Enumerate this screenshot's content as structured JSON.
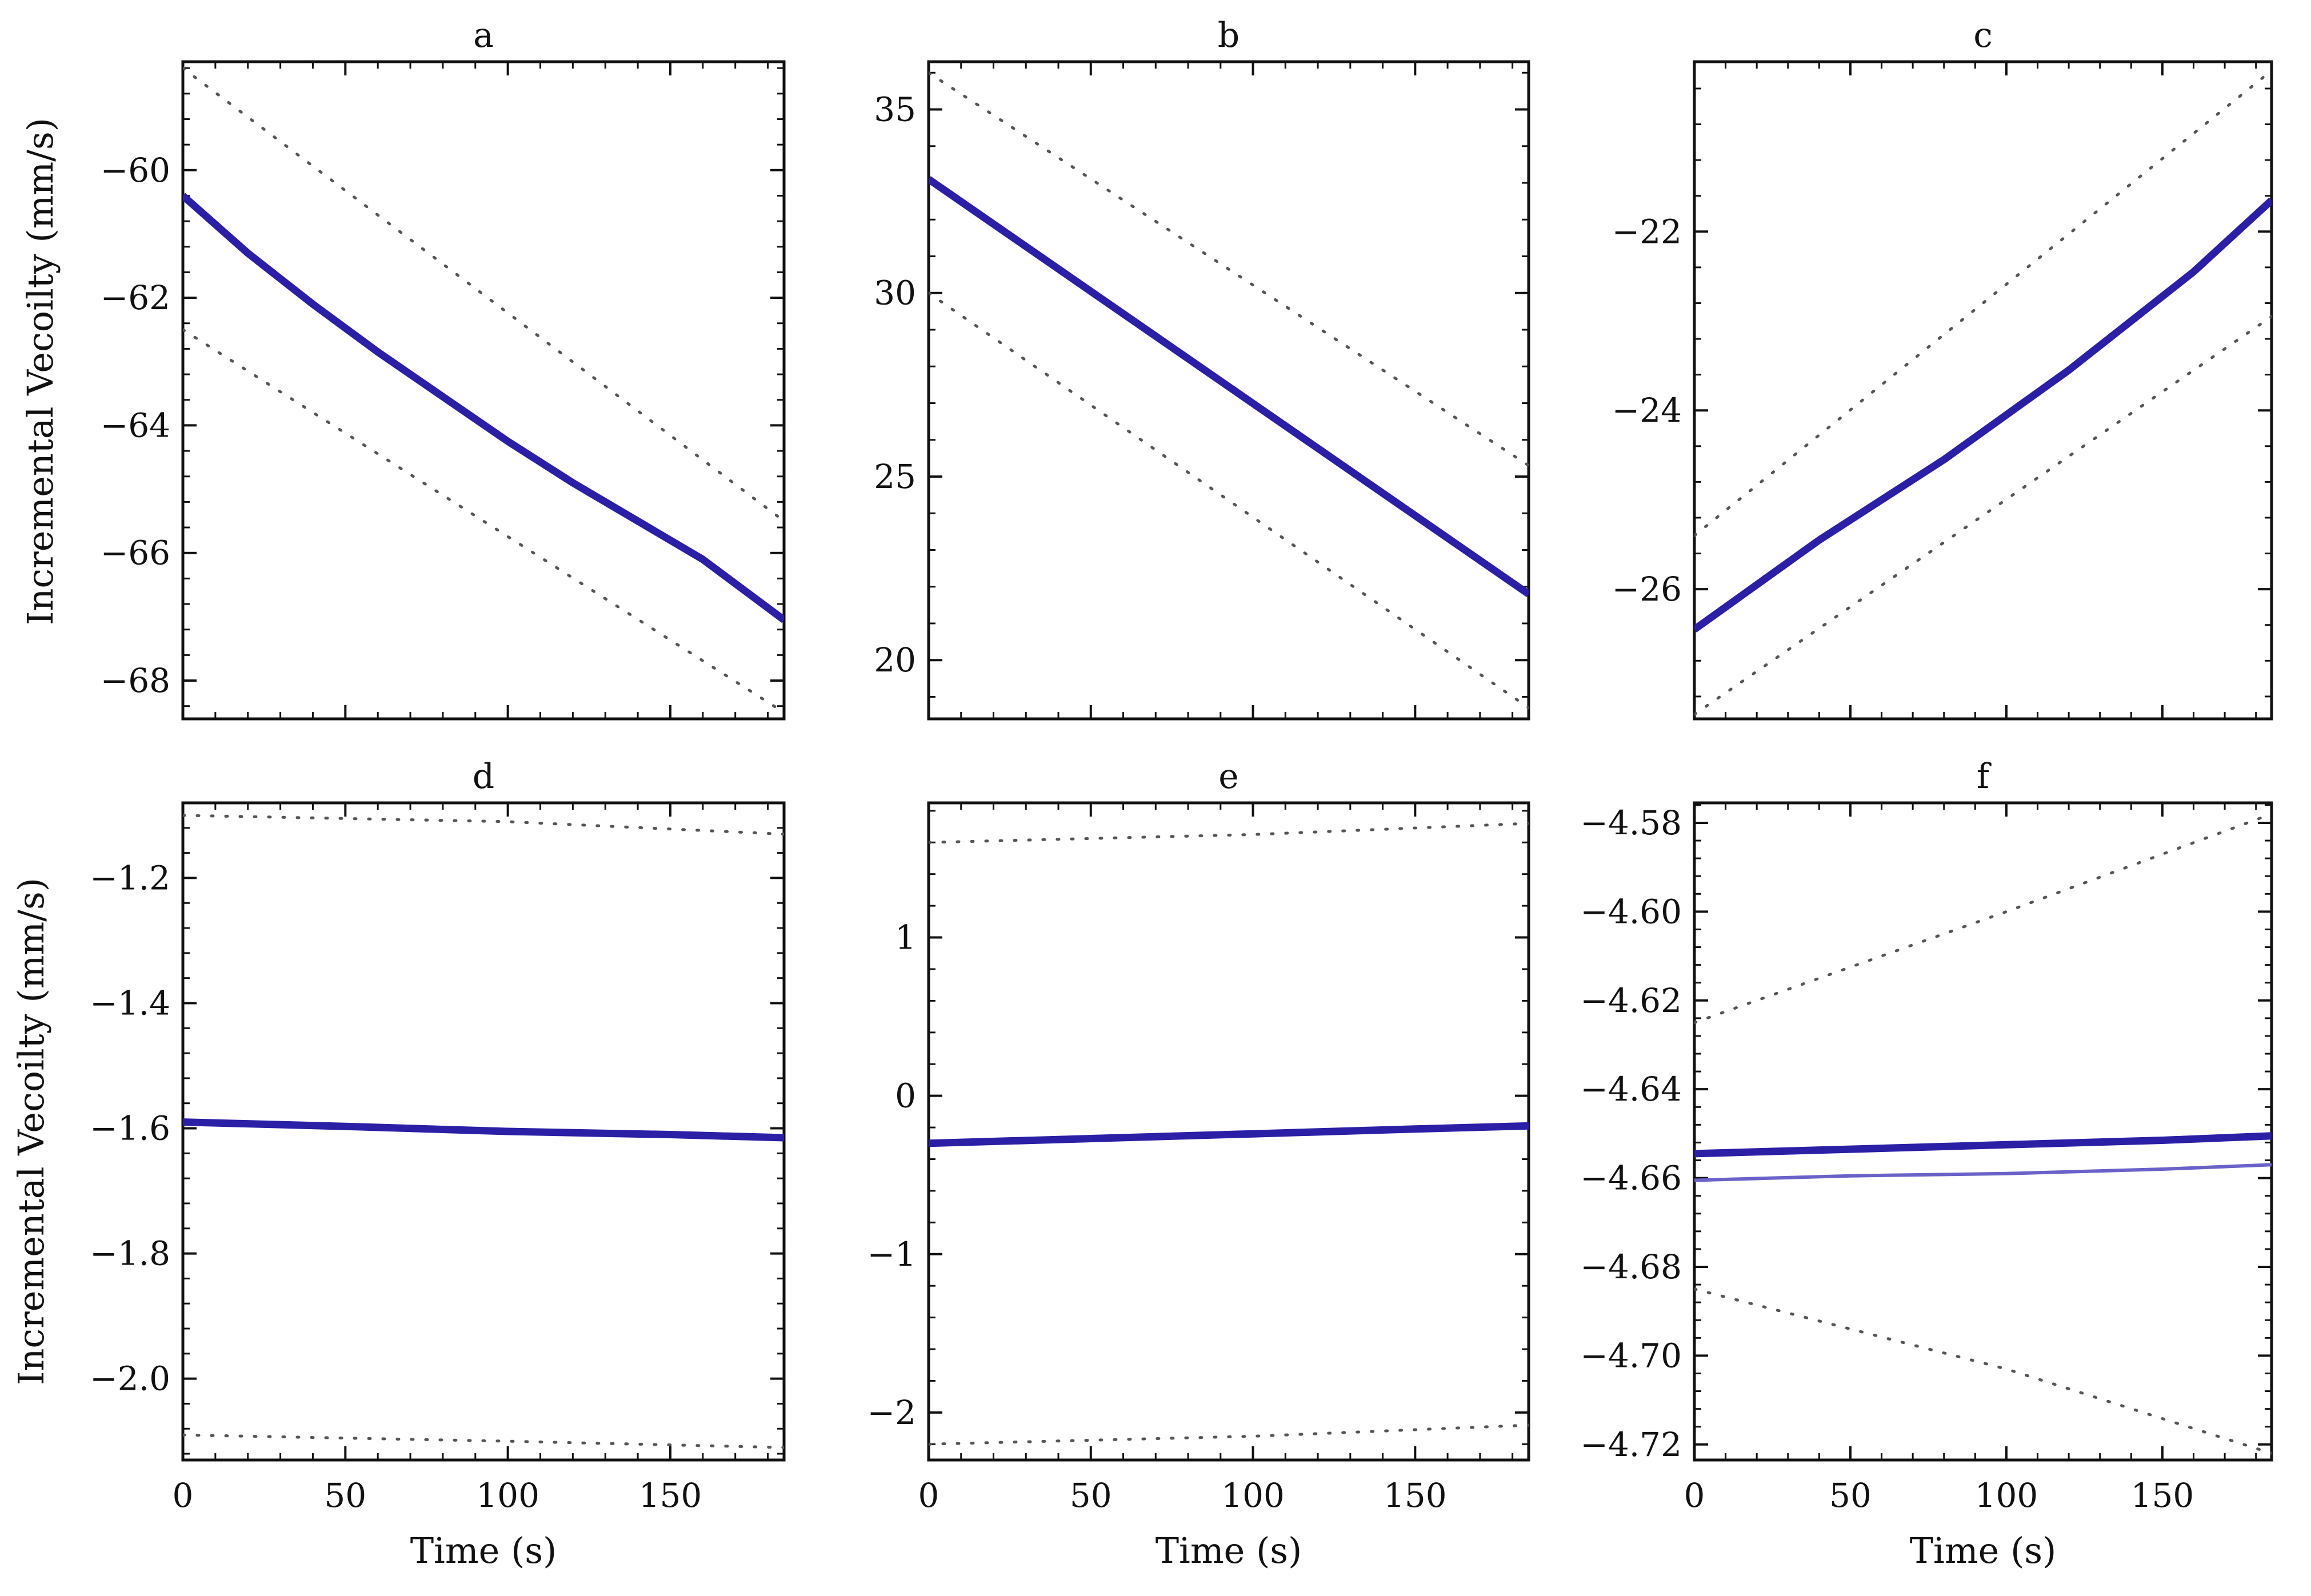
{
  "chart_data": [
    {
      "type": "line",
      "title": "a",
      "xlabel": "",
      "ylabel": "Incremental Vecoilty (mm/s)",
      "xlim": [
        0,
        185
      ],
      "ylim": [
        -68.6,
        -58.3
      ],
      "xticks": [
        0,
        50,
        100,
        150
      ],
      "xtick_labels": [
        "",
        "",
        "",
        ""
      ],
      "yticks": [
        -68,
        -66,
        -64,
        -62,
        -60
      ],
      "ytick_labels": [
        "−68",
        "−66",
        "−64",
        "−62",
        "−60"
      ],
      "series": [
        {
          "name": "velocity",
          "style": "solid",
          "x": [
            0,
            20,
            40,
            60,
            80,
            100,
            120,
            140,
            160,
            185
          ],
          "y": [
            -60.4,
            -61.3,
            -62.1,
            -62.85,
            -63.55,
            -64.25,
            -64.9,
            -65.5,
            -66.1,
            -67.05
          ]
        },
        {
          "name": "upper bound",
          "style": "dotted",
          "x": [
            0,
            185
          ],
          "y": [
            -58.4,
            -65.5
          ]
        },
        {
          "name": "lower bound",
          "style": "dotted",
          "x": [
            0,
            185
          ],
          "y": [
            -62.5,
            -68.5
          ]
        }
      ]
    },
    {
      "type": "line",
      "title": "b",
      "xlabel": "",
      "ylabel": "",
      "xlim": [
        0,
        185
      ],
      "ylim": [
        18.4,
        36.3
      ],
      "xticks": [
        0,
        50,
        100,
        150
      ],
      "xtick_labels": [
        "",
        "",
        "",
        ""
      ],
      "yticks": [
        20,
        25,
        30,
        35
      ],
      "ytick_labels": [
        "20",
        "25",
        "30",
        "35"
      ],
      "series": [
        {
          "name": "velocity",
          "style": "solid",
          "x": [
            0,
            185
          ],
          "y": [
            33.1,
            21.8
          ]
        },
        {
          "name": "upper bound",
          "style": "dotted",
          "x": [
            0,
            185
          ],
          "y": [
            36.0,
            25.3
          ]
        },
        {
          "name": "lower bound",
          "style": "dotted",
          "x": [
            0,
            185
          ],
          "y": [
            30.0,
            18.7
          ]
        }
      ]
    },
    {
      "type": "line",
      "title": "c",
      "xlabel": "",
      "ylabel": "",
      "xlim": [
        0,
        185
      ],
      "ylim": [
        -27.45,
        -20.1
      ],
      "xticks": [
        0,
        50,
        100,
        150
      ],
      "xtick_labels": [
        "",
        "",
        "",
        ""
      ],
      "yticks": [
        -26,
        -24,
        -22
      ],
      "ytick_labels": [
        "−26",
        "−24",
        "−22"
      ],
      "series": [
        {
          "name": "velocity",
          "style": "solid",
          "x": [
            0,
            40,
            80,
            120,
            160,
            185
          ],
          "y": [
            -26.45,
            -25.45,
            -24.55,
            -23.55,
            -22.45,
            -21.65
          ]
        },
        {
          "name": "upper bound",
          "style": "dotted",
          "x": [
            0,
            185
          ],
          "y": [
            -25.4,
            -20.2
          ]
        },
        {
          "name": "lower bound",
          "style": "dotted",
          "x": [
            0,
            185
          ],
          "y": [
            -27.4,
            -22.95
          ]
        }
      ]
    },
    {
      "type": "line",
      "title": "d",
      "xlabel": "Time (s)",
      "ylabel": "Incremental Vecoilty (mm/s)",
      "xlim": [
        0,
        185
      ],
      "ylim": [
        -2.13,
        -1.08
      ],
      "xticks": [
        0,
        50,
        100,
        150
      ],
      "xtick_labels": [
        "0",
        "50",
        "100",
        "150"
      ],
      "yticks": [
        -2.0,
        -1.8,
        -1.6,
        -1.4,
        -1.2
      ],
      "ytick_labels": [
        "−2.0",
        "−1.8",
        "−1.6",
        "−1.4",
        "−1.2"
      ],
      "series": [
        {
          "name": "velocity",
          "style": "solid",
          "x": [
            0,
            50,
            100,
            150,
            185
          ],
          "y": [
            -1.59,
            -1.597,
            -1.605,
            -1.61,
            -1.615
          ]
        },
        {
          "name": "upper bound",
          "style": "dotted",
          "x": [
            0,
            100,
            185
          ],
          "y": [
            -1.1,
            -1.11,
            -1.13
          ]
        },
        {
          "name": "lower bound",
          "style": "dotted",
          "x": [
            0,
            100,
            185
          ],
          "y": [
            -2.09,
            -2.1,
            -2.11
          ]
        }
      ]
    },
    {
      "type": "line",
      "title": "e",
      "xlabel": "Time (s)",
      "ylabel": "",
      "xlim": [
        0,
        185
      ],
      "ylim": [
        -2.3,
        1.85
      ],
      "xticks": [
        0,
        50,
        100,
        150
      ],
      "xtick_labels": [
        "0",
        "50",
        "100",
        "150"
      ],
      "yticks": [
        -2,
        -1,
        0,
        1
      ],
      "ytick_labels": [
        "−2",
        "−1",
        "0",
        "1"
      ],
      "series": [
        {
          "name": "velocity",
          "style": "solid",
          "x": [
            0,
            50,
            100,
            150,
            185
          ],
          "y": [
            -0.3,
            -0.27,
            -0.24,
            -0.21,
            -0.19
          ]
        },
        {
          "name": "upper bound",
          "style": "dotted",
          "x": [
            0,
            100,
            185
          ],
          "y": [
            1.6,
            1.65,
            1.72
          ]
        },
        {
          "name": "lower bound",
          "style": "dotted",
          "x": [
            0,
            100,
            185
          ],
          "y": [
            -2.2,
            -2.15,
            -2.08
          ]
        }
      ]
    },
    {
      "type": "line",
      "title": "f",
      "xlabel": "Time (s)",
      "ylabel": "",
      "xlim": [
        0,
        185
      ],
      "ylim": [
        -4.7235,
        -4.5755
      ],
      "xticks": [
        0,
        50,
        100,
        150
      ],
      "xtick_labels": [
        "0",
        "50",
        "100",
        "150"
      ],
      "yticks": [
        -4.72,
        -4.7,
        -4.68,
        -4.66,
        -4.64,
        -4.62,
        -4.6,
        -4.58
      ],
      "ytick_labels": [
        "−4.72",
        "−4.70",
        "−4.68",
        "−4.66",
        "−4.64",
        "−4.62",
        "−4.60",
        "−4.58"
      ],
      "series": [
        {
          "name": "velocity",
          "style": "solid",
          "x": [
            0,
            50,
            100,
            150,
            185
          ],
          "y": [
            -4.6545,
            -4.6535,
            -4.6525,
            -4.6515,
            -4.6505
          ]
        },
        {
          "name": "velocity (secondary)",
          "style": "thin",
          "x": [
            0,
            50,
            100,
            150,
            185
          ],
          "y": [
            -4.6605,
            -4.6595,
            -4.659,
            -4.658,
            -4.657
          ]
        },
        {
          "name": "upper bound",
          "style": "dotted",
          "x": [
            0,
            100,
            185
          ],
          "y": [
            -4.625,
            -4.6,
            -4.578
          ]
        },
        {
          "name": "lower bound",
          "style": "dotted",
          "x": [
            0,
            100,
            185
          ],
          "y": [
            -4.685,
            -4.703,
            -4.722
          ]
        }
      ]
    }
  ],
  "colors": {
    "series_line": "#2b1fa6",
    "series_thin": "#6a62c8",
    "dotted": "#555555",
    "frame": "#111111"
  }
}
